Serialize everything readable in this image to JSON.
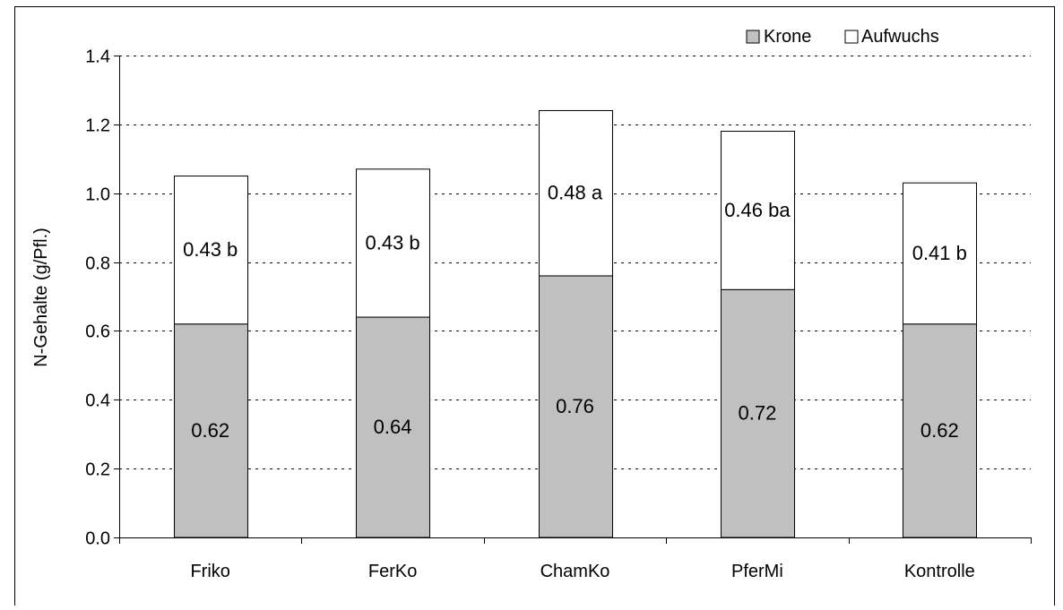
{
  "chart_data": {
    "type": "bar",
    "stacked": true,
    "categories": [
      "Friko",
      "FerKo",
      "ChamKo",
      "PferMi",
      "Kontrolle"
    ],
    "series": [
      {
        "name": "Krone",
        "color": "#c0c0c0",
        "values": [
          0.62,
          0.64,
          0.76,
          0.72,
          0.62
        ],
        "labels": [
          "0.62",
          "0.64",
          "0.76",
          "0.72",
          "0.62"
        ]
      },
      {
        "name": "Aufwuchs",
        "color": "#ffffff",
        "values": [
          0.43,
          0.43,
          0.48,
          0.46,
          0.41
        ],
        "labels": [
          "0.43 b",
          "0.43 b",
          "0.48 a",
          "0.46 ba",
          "0.41 b"
        ]
      }
    ],
    "ylabel": "N-Gehalte (g/Pfl.)",
    "xlabel": "",
    "ylim": [
      0,
      1.4
    ],
    "yticks": [
      "0.0",
      "0.2",
      "0.4",
      "0.6",
      "0.8",
      "1.0",
      "1.2",
      "1.4"
    ],
    "grid": "horizontal dashed",
    "legend_position": "top-right"
  }
}
